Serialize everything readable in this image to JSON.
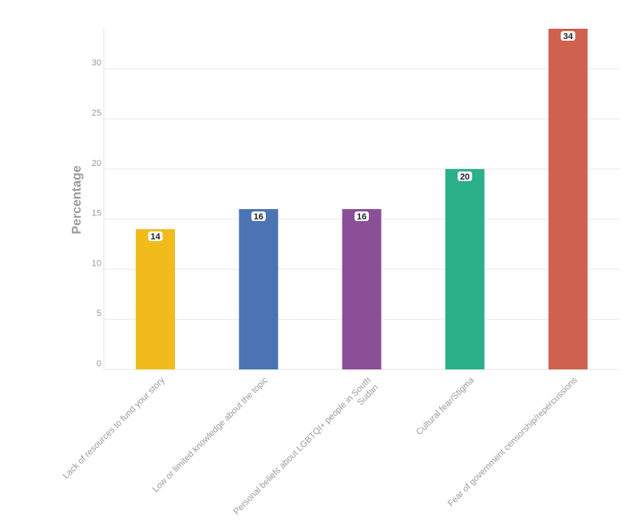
{
  "chart_data": {
    "type": "bar",
    "title": "",
    "xlabel": "",
    "ylabel": "Percentage",
    "ylim": [
      0,
      34
    ],
    "yticks": [
      0,
      5,
      10,
      15,
      20,
      25,
      30
    ],
    "grid": true,
    "legend": "none",
    "categories": [
      [
        "Lack of resources to fund your story"
      ],
      [
        "Low or limited knowledge about the topic"
      ],
      [
        "Personal beliefs about LGBTQI+ people in South",
        "Sudan"
      ],
      [
        "Cultural fear/Stigma"
      ],
      [
        "Fear of government censorship/repercussions"
      ]
    ],
    "values": [
      14,
      16,
      16,
      20,
      34
    ],
    "colors": [
      "#f1bb1b",
      "#4a74b3",
      "#8a4f97",
      "#2bb089",
      "#cf6150"
    ]
  }
}
